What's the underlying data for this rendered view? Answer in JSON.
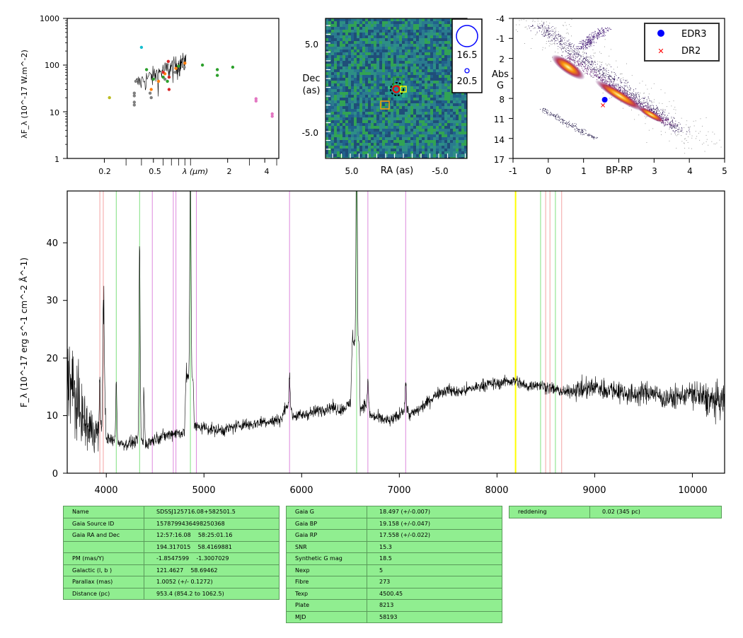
{
  "sed": {
    "ylabel": "λF_λ (10^-17 W.m^-2)",
    "xlabel": "λ (μm)",
    "yticks": [
      "1000",
      "100",
      "10",
      "1"
    ],
    "xticks": [
      "0.2",
      "0.5",
      "2",
      "4"
    ],
    "points": [
      {
        "x": 0.22,
        "y": 20,
        "c": "#bcbd22"
      },
      {
        "x": 0.35,
        "y": 25,
        "c": "#7f7f7f"
      },
      {
        "x": 0.35,
        "y": 22,
        "c": "#7f7f7f"
      },
      {
        "x": 0.35,
        "y": 16,
        "c": "#7f7f7f"
      },
      {
        "x": 0.35,
        "y": 14,
        "c": "#7f7f7f"
      },
      {
        "x": 0.36,
        "y": 45,
        "c": "#7f7f7f"
      },
      {
        "x": 0.47,
        "y": 25,
        "c": "#7f7f7f"
      },
      {
        "x": 0.48,
        "y": 20,
        "c": "#7f7f7f"
      },
      {
        "x": 0.62,
        "y": 50,
        "c": "#7f7f7f"
      },
      {
        "x": 0.75,
        "y": 70,
        "c": "#7f7f7f"
      },
      {
        "x": 0.89,
        "y": 90,
        "c": "#7f7f7f"
      },
      {
        "x": 0.4,
        "y": 240,
        "c": "#17becf"
      },
      {
        "x": 0.44,
        "y": 80,
        "c": "#2ca02c"
      },
      {
        "x": 0.5,
        "y": 50,
        "c": "#2ca02c"
      },
      {
        "x": 0.6,
        "y": 55,
        "c": "#2ca02c"
      },
      {
        "x": 0.65,
        "y": 45,
        "c": "#2ca02c"
      },
      {
        "x": 0.8,
        "y": 95,
        "c": "#2ca02c"
      },
      {
        "x": 1.25,
        "y": 100,
        "c": "#2ca02c"
      },
      {
        "x": 1.65,
        "y": 80,
        "c": "#2ca02c"
      },
      {
        "x": 1.65,
        "y": 60,
        "c": "#2ca02c"
      },
      {
        "x": 2.2,
        "y": 90,
        "c": "#2ca02c"
      },
      {
        "x": 0.48,
        "y": 30,
        "c": "#ff7f0e"
      },
      {
        "x": 0.55,
        "y": 45,
        "c": "#ff7f0e"
      },
      {
        "x": 0.62,
        "y": 65,
        "c": "#ff7f0e"
      },
      {
        "x": 0.76,
        "y": 85,
        "c": "#ff7f0e"
      },
      {
        "x": 0.9,
        "y": 110,
        "c": "#ff7f0e"
      },
      {
        "x": 0.6,
        "y": 70,
        "c": "#d62728"
      },
      {
        "x": 0.66,
        "y": 120,
        "c": "#d62728"
      },
      {
        "x": 0.67,
        "y": 30,
        "c": "#d62728"
      },
      {
        "x": 0.67,
        "y": 55,
        "c": "#d62728"
      },
      {
        "x": 3.4,
        "y": 19,
        "c": "#e377c2"
      },
      {
        "x": 3.4,
        "y": 17,
        "c": "#e377c2"
      },
      {
        "x": 4.6,
        "y": 9,
        "c": "#e377c2"
      },
      {
        "x": 4.6,
        "y": 8,
        "c": "#e377c2"
      }
    ]
  },
  "cutout": {
    "ylabel_line1": "Dec",
    "ylabel_line2": "(as)",
    "xlabel": "RA (as)",
    "yticks": [
      "5.0",
      "-5.0"
    ],
    "xticks": [
      "5.0",
      "-5.0"
    ],
    "legend": [
      "16.5",
      "20.5"
    ]
  },
  "hrd": {
    "ylabel_line1": "Abs",
    "ylabel_line2": "G",
    "xlabel": "BP-RP",
    "yticks": [
      "-4",
      "-1",
      "2",
      "5",
      "8",
      "11",
      "14",
      "17"
    ],
    "xticks": [
      "-1",
      "0",
      "1",
      "3",
      "4",
      "5"
    ],
    "legend": [
      {
        "label": "EDR3",
        "color": "#0000ff"
      },
      {
        "label": "DR2",
        "color": "#ff0000"
      }
    ],
    "star_edr3": {
      "x": 1.6,
      "y": 8.2
    },
    "star_dr2": {
      "x": 1.55,
      "y": 9.0
    }
  },
  "spectrum": {
    "ylabel": "F_λ (10^-17 erg s^-1 cm^-2 Å^-1)",
    "yticks": [
      "0",
      "10",
      "20",
      "30",
      "40"
    ],
    "xticks": [
      "4000",
      "5000",
      "6000",
      "7000",
      "8000",
      "9000",
      "10000"
    ],
    "xlim": [
      3600,
      10330
    ],
    "ylim": [
      0,
      49
    ],
    "lines_red": [
      3934,
      3969,
      8498,
      8542,
      8662
    ],
    "lines_green": [
      4102,
      4341,
      4861,
      6563,
      8446,
      8598
    ],
    "lines_magenta": [
      4471,
      4686,
      4713,
      4922,
      5876,
      6678,
      7065
    ],
    "line_yellow": 8190
  },
  "chart_data": [
    {
      "type": "scatter",
      "ylabel": "λF_λ (10^-17 W.m^-2)",
      "xlabel": "λ (μm)",
      "x_scale": "log",
      "y_scale": "log",
      "ylim": [
        1,
        1000
      ],
      "xlim": [
        0.1,
        5
      ]
    },
    {
      "type": "line",
      "xlabel": "",
      "ylabel": "F_λ (10^-17 erg s^-1 cm^-2 Å^-1)",
      "xlim": [
        3600,
        10330
      ],
      "ylim": [
        0,
        49
      ],
      "x": [
        3600,
        3700,
        3800,
        3900,
        3950,
        4000,
        4100,
        4200,
        4300,
        4340,
        4400,
        4500,
        4600,
        4700,
        4800,
        4861,
        4900,
        5000,
        5100,
        5200,
        5300,
        5400,
        5500,
        5600,
        5700,
        5800,
        5876,
        5900,
        6000,
        6100,
        6200,
        6300,
        6400,
        6500,
        6563,
        6600,
        6678,
        6700,
        6800,
        6900,
        7000,
        7065,
        7100,
        7200,
        7300,
        7400,
        7500,
        7600,
        7700,
        7800,
        7900,
        8000,
        8100,
        8200,
        8300,
        8400,
        8500,
        8600,
        8700,
        8800,
        8900,
        9000,
        9100,
        9200,
        9300,
        9400,
        9500,
        9600,
        9700,
        9800,
        9900,
        10000,
        10100,
        10200,
        10300
      ],
      "y": [
        18,
        12,
        8,
        7,
        32,
        6,
        5.5,
        5,
        5.5,
        40,
        5,
        6,
        6.5,
        7,
        7,
        43,
        8,
        8,
        7.5,
        7.5,
        8,
        8.5,
        8.5,
        9,
        9,
        9.5,
        14,
        10,
        10,
        10.5,
        11,
        11.5,
        11,
        12,
        49,
        11,
        13,
        10,
        9.5,
        9,
        10,
        13,
        10,
        11,
        12.5,
        14,
        14.5,
        14,
        14.5,
        15,
        15.5,
        15.5,
        16,
        16,
        15,
        15.5,
        15,
        14.5,
        14,
        14.5,
        14.5,
        15,
        14.5,
        14.5,
        14,
        13.5,
        14,
        14,
        13,
        13,
        13.5,
        14,
        13,
        12.5,
        12.5
      ]
    }
  ],
  "table1": [
    [
      "Name",
      "SDSSJ125716.08+582501.5"
    ],
    [
      "Gaia Source ID",
      "1578799436498250368"
    ],
    [
      "Gaia RA and Dec",
      "12:57:16.08    58:25:01.16"
    ],
    [
      "",
      "194.317015    58.4169881"
    ],
    [
      "PM (mas/Y)",
      "-1.8547599    -1.3007029"
    ],
    [
      "Galactic (l, b )",
      "121.4627    58.69462"
    ],
    [
      "Parallax (mas)",
      "1.0052 (+/- 0.1272)"
    ],
    [
      "Distance (pc)",
      "953.4 (854.2 to 1062.5)"
    ]
  ],
  "table2": [
    [
      "Gaia G",
      "18.497 (+/-0.007)"
    ],
    [
      "Gaia BP",
      "19.158 (+/-0.047)"
    ],
    [
      "Gaia RP",
      "17.558 (+/-0.022)"
    ],
    [
      "SNR",
      "15.3"
    ],
    [
      "Synthetic G mag",
      "18.5"
    ],
    [
      "Nexp",
      "5"
    ],
    [
      "Fibre",
      "273"
    ],
    [
      "Texp",
      "4500.45"
    ],
    [
      "Plate",
      "8213"
    ],
    [
      "MJD",
      "58193"
    ]
  ],
  "table3": [
    [
      "reddening",
      "0.02 (345 pc)"
    ]
  ]
}
